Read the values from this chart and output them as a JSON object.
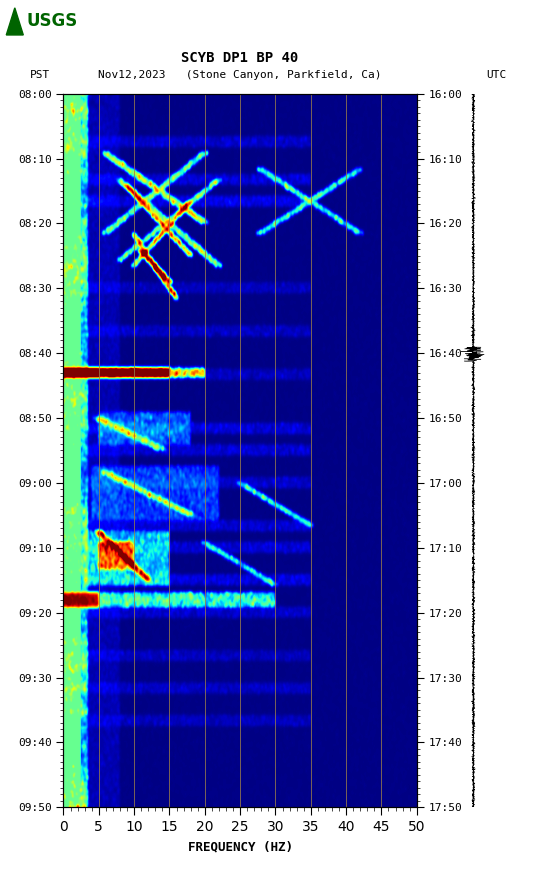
{
  "title_line1": "SCYB DP1 BP 40",
  "title_line2": "PST   Nov12,2023   (Stone Canyon, Parkfield, Ca)         UTC",
  "xlabel": "FREQUENCY (HZ)",
  "freq_min": 0,
  "freq_max": 50,
  "freq_ticks": [
    0,
    5,
    10,
    15,
    20,
    25,
    30,
    35,
    40,
    45,
    50
  ],
  "time_labels_left": [
    "08:00",
    "08:10",
    "08:20",
    "08:30",
    "08:40",
    "08:50",
    "09:00",
    "09:10",
    "09:20",
    "09:30",
    "09:40",
    "09:50"
  ],
  "time_labels_right": [
    "16:00",
    "16:10",
    "16:20",
    "16:30",
    "16:40",
    "16:50",
    "17:00",
    "17:10",
    "17:20",
    "17:30",
    "17:40",
    "17:50"
  ],
  "vertical_lines_freq": [
    5,
    10,
    15,
    20,
    25,
    30,
    35,
    40,
    45
  ],
  "vertical_line_color": "#9a7d4a",
  "background_color": "#ffffff",
  "colormap": "jet",
  "fig_width": 5.52,
  "fig_height": 8.92,
  "usgs_logo_color": "#006400",
  "seed": 42
}
